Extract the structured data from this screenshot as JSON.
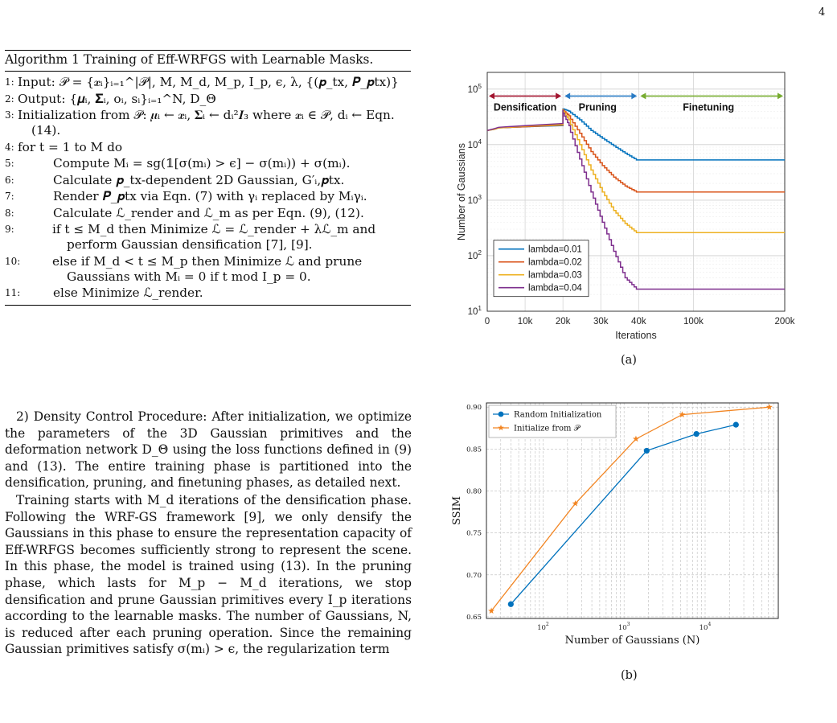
{
  "page_number": "4",
  "algorithm": {
    "title": "Algorithm 1 Training of Eff-WRFGS with Learnable Masks.",
    "steps": [
      {
        "num": "1:",
        "text": "Input: 𝒫 = {𝒙ᵢ}ᵢ₌₁^|𝒫|, M, M_d, M_p, I_p, ϵ, λ, {(𝒑_tx, 𝑷_𝒑tx)}"
      },
      {
        "num": "2:",
        "text": "Output: {𝝁ᵢ, 𝚺ᵢ, oᵢ, sᵢ}ᵢ₌₁^N, D_Θ"
      },
      {
        "num": "3:",
        "text": "Initialization from 𝒫: 𝝁ᵢ ← 𝒙ᵢ, 𝚺ᵢ ← dᵢ²𝑰₃ where 𝒙ᵢ ∈ 𝒫, dᵢ ← Eqn. (14)."
      },
      {
        "num": "4:",
        "text": "for t = 1 to M do"
      },
      {
        "num": "5:",
        "text": "Compute Mᵢ = sg(𝟙[σ(mᵢ) > ϵ] − σ(mᵢ)) + σ(mᵢ)."
      },
      {
        "num": "6:",
        "text": "Calculate 𝒑_tx-dependent 2D Gaussian, G′ᵢ,𝒑tx."
      },
      {
        "num": "7:",
        "text": "Render 𝑷_𝒑tx via Eqn. (7) with γᵢ replaced by Mᵢγᵢ."
      },
      {
        "num": "8:",
        "text": "Calculate ℒ_render and ℒ_m as per Eqn. (9), (12)."
      },
      {
        "num": "9:",
        "text": "if t ≤ M_d then Minimize ℒ = ℒ_render + λℒ_m and perform Gaussian densification [7], [9]."
      },
      {
        "num": "10:",
        "text": "else if M_d < t ≤ M_p then Minimize ℒ and prune Gaussians with Mᵢ = 0 if t mod I_p = 0."
      },
      {
        "num": "11:",
        "text": "else Minimize ℒ_render."
      }
    ]
  },
  "body": {
    "p1": "2) Density Control Procedure: After initialization, we optimize the parameters of the 3D Gaussian primitives and the deformation network D_Θ using the loss functions defined in (9) and (13). The entire training phase is partitioned into the densification, pruning, and finetuning phases, as detailed next.",
    "p2": "Training starts with M_d iterations of the densification phase. Following the WRF-GS framework [9], we only densify the Gaussians in this phase to ensure the representation capacity of Eff-WRFGS becomes sufficiently strong to represent the scene. In this phase, the model is trained using (13). In the pruning phase, which lasts for M_p − M_d iterations, we stop densification and prune Gaussian primitives every I_p iterations according to the learnable masks. The number of Gaussians, N, is reduced after each pruning operation. Since the remaining Gaussian primitives satisfy σ(mᵢ) > ϵ, the regularization term"
  },
  "figure_a": {
    "caption": "(a)",
    "chart_data": {
      "type": "line",
      "xlabel": "Iterations",
      "ylabel": "Number of Gaussians",
      "yscale": "log",
      "ylim": [
        10,
        200000
      ],
      "x_ticks": [
        "0",
        "10k",
        "20k",
        "30k",
        "40k",
        "100k",
        "200k"
      ],
      "y_ticks": [
        "10^1",
        "10^2",
        "10^3",
        "10^4",
        "10^5"
      ],
      "grid": true,
      "legend_position": "bottom-left",
      "phases": [
        "Densification",
        "Pruning",
        "Finetuning"
      ],
      "series": [
        {
          "name": "lambda=0.01",
          "color": "#0072BD",
          "points": [
            [
              0,
              18000
            ],
            [
              2000,
              19000
            ],
            [
              3000,
              20000
            ],
            [
              10000,
              21000
            ],
            [
              20000,
              22000
            ],
            [
              20000,
              45000
            ],
            [
              22000,
              40000
            ],
            [
              25000,
              28000
            ],
            [
              28000,
              18000
            ],
            [
              31000,
              13000
            ],
            [
              34000,
              9500
            ],
            [
              37000,
              7000
            ],
            [
              40000,
              5300
            ],
            [
              200000,
              5300
            ]
          ]
        },
        {
          "name": "lambda=0.02",
          "color": "#D95319",
          "points": [
            [
              0,
              18000
            ],
            [
              2000,
              19000
            ],
            [
              3000,
              20000
            ],
            [
              10000,
              21000
            ],
            [
              20000,
              22500
            ],
            [
              20000,
              44000
            ],
            [
              22000,
              33000
            ],
            [
              25000,
              16000
            ],
            [
              28000,
              7500
            ],
            [
              31000,
              4200
            ],
            [
              34000,
              2600
            ],
            [
              37000,
              1800
            ],
            [
              40000,
              1400
            ],
            [
              200000,
              1400
            ]
          ]
        },
        {
          "name": "lambda=0.03",
          "color": "#EDB120",
          "points": [
            [
              0,
              18000
            ],
            [
              2000,
              19000
            ],
            [
              3000,
              20000
            ],
            [
              10000,
              21500
            ],
            [
              20000,
              23000
            ],
            [
              20000,
              43000
            ],
            [
              22000,
              28000
            ],
            [
              25000,
              10000
            ],
            [
              28000,
              3500
            ],
            [
              31000,
              1400
            ],
            [
              34000,
              650
            ],
            [
              37000,
              380
            ],
            [
              40000,
              260
            ],
            [
              200000,
              260
            ]
          ]
        },
        {
          "name": "lambda=0.04",
          "color": "#7E2F8E",
          "points": [
            [
              0,
              18000
            ],
            [
              2000,
              19500
            ],
            [
              3000,
              20500
            ],
            [
              10000,
              22000
            ],
            [
              20000,
              24000
            ],
            [
              20000,
              42000
            ],
            [
              22000,
              22000
            ],
            [
              25000,
              5500
            ],
            [
              28000,
              1400
            ],
            [
              31000,
              400
            ],
            [
              34000,
              120
            ],
            [
              37000,
              40
            ],
            [
              40000,
              25
            ],
            [
              200000,
              25
            ]
          ]
        }
      ]
    }
  },
  "figure_b": {
    "caption": "(b)",
    "chart_data": {
      "type": "line",
      "xlabel": "Number of Gaussians (N)",
      "ylabel": "SSIM",
      "xscale": "log",
      "xlim": [
        20,
        80000
      ],
      "ylim": [
        0.648,
        0.905
      ],
      "y_ticks": [
        "0.65",
        "0.70",
        "0.75",
        "0.80",
        "0.85",
        "0.90"
      ],
      "x_ticks": [
        "10^2",
        "10^3",
        "10^4"
      ],
      "grid": true,
      "legend_position": "top-left",
      "series": [
        {
          "name": "Random Initialization",
          "color": "#0072BD",
          "marker": "circle",
          "points": [
            [
              40,
              0.665
            ],
            [
              1900,
              0.848
            ],
            [
              7800,
              0.868
            ],
            [
              24000,
              0.879
            ]
          ]
        },
        {
          "name": "Initialize from 𝒫",
          "color": "#F28522",
          "marker": "star",
          "points": [
            [
              23,
              0.657
            ],
            [
              250,
              0.785
            ],
            [
              1400,
              0.862
            ],
            [
              5200,
              0.891
            ],
            [
              62000,
              0.9
            ]
          ]
        }
      ]
    }
  }
}
